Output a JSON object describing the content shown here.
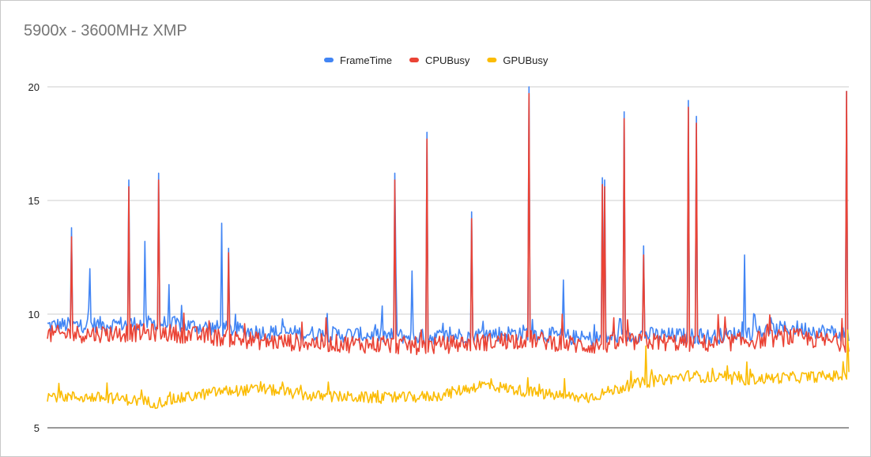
{
  "chart_data": {
    "type": "line",
    "title": "5900x - 3600MHz XMP",
    "xlabel": "",
    "ylabel": "",
    "ylim": [
      5,
      20
    ],
    "yticks": [
      5,
      10,
      15,
      20
    ],
    "grid": true,
    "legend_position": "top",
    "n_samples": 700,
    "series": [
      {
        "name": "FrameTime",
        "color": "#4285f4",
        "baseline": [
          [
            0,
            9.5
          ],
          [
            100,
            9.6
          ],
          [
            190,
            9.2
          ],
          [
            330,
            9.0
          ],
          [
            420,
            9.2
          ],
          [
            470,
            8.9
          ],
          [
            520,
            9.1
          ],
          [
            580,
            9.0
          ],
          [
            650,
            9.4
          ],
          [
            700,
            9.1
          ]
        ],
        "noise": 0.35,
        "spikes": [
          [
            21,
            13.8
          ],
          [
            71,
            15.9
          ],
          [
            85,
            13.2
          ],
          [
            97,
            16.2
          ],
          [
            152,
            14.0
          ],
          [
            158,
            12.9
          ],
          [
            304,
            11.8
          ],
          [
            318,
            11.9
          ],
          [
            303,
            16.2
          ],
          [
            331,
            18.0
          ],
          [
            370,
            14.5
          ],
          [
            420,
            20.0
          ],
          [
            450,
            11.5
          ],
          [
            484,
            16.0
          ],
          [
            486,
            15.9
          ],
          [
            503,
            18.9
          ],
          [
            520,
            13.0
          ],
          [
            559,
            19.4
          ],
          [
            566,
            18.7
          ],
          [
            608,
            12.6
          ],
          [
            697,
            19.8
          ],
          [
            106,
            11.3
          ],
          [
            37,
            12.0
          ]
        ]
      },
      {
        "name": "CPUBusy",
        "color": "#ea4335",
        "baseline": [
          [
            0,
            9.1
          ],
          [
            100,
            9.2
          ],
          [
            190,
            8.8
          ],
          [
            330,
            8.6
          ],
          [
            420,
            8.9
          ],
          [
            470,
            8.6
          ],
          [
            520,
            8.8
          ],
          [
            580,
            8.7
          ],
          [
            650,
            9.0
          ],
          [
            700,
            8.7
          ]
        ],
        "noise": 0.4,
        "spikes": [
          [
            21,
            13.4
          ],
          [
            71,
            15.6
          ],
          [
            97,
            15.9
          ],
          [
            158,
            12.7
          ],
          [
            303,
            15.9
          ],
          [
            331,
            17.7
          ],
          [
            370,
            14.2
          ],
          [
            420,
            19.7
          ],
          [
            484,
            15.7
          ],
          [
            486,
            15.6
          ],
          [
            503,
            18.6
          ],
          [
            520,
            12.6
          ],
          [
            559,
            19.1
          ],
          [
            566,
            18.4
          ],
          [
            697,
            19.8
          ]
        ]
      },
      {
        "name": "GPUBusy",
        "color": "#fbbc04",
        "baseline": [
          [
            0,
            6.4
          ],
          [
            60,
            6.3
          ],
          [
            95,
            6.1
          ],
          [
            150,
            6.6
          ],
          [
            190,
            6.7
          ],
          [
            230,
            6.4
          ],
          [
            300,
            6.3
          ],
          [
            340,
            6.4
          ],
          [
            380,
            6.9
          ],
          [
            430,
            6.5
          ],
          [
            470,
            6.3
          ],
          [
            510,
            6.9
          ],
          [
            560,
            7.3
          ],
          [
            600,
            7.1
          ],
          [
            640,
            7.2
          ],
          [
            700,
            7.3
          ]
        ],
        "noise": 0.25,
        "spikes": [
          [
            522,
            8.6
          ],
          [
            610,
            7.9
          ],
          [
            698,
            9.3
          ]
        ]
      }
    ]
  }
}
